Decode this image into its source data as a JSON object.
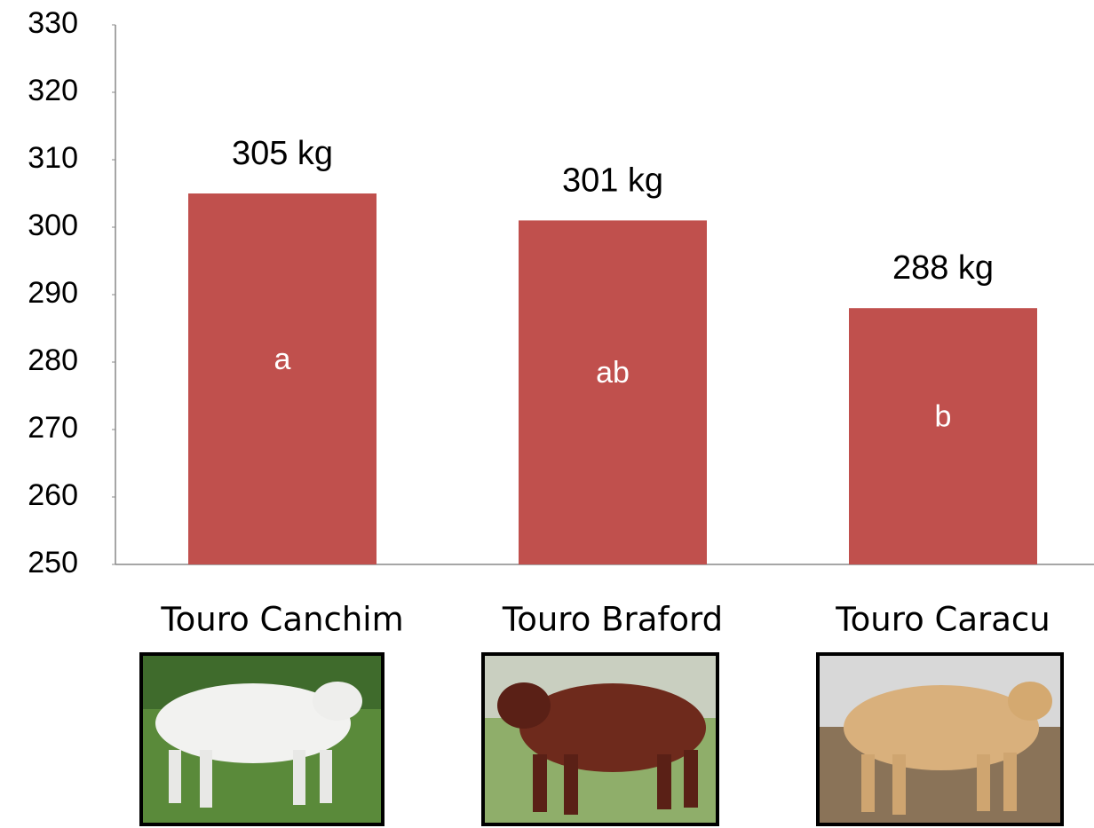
{
  "chart_data": {
    "type": "bar",
    "categories": [
      "Touro Canchim",
      "Touro Braford",
      "Touro Caracu"
    ],
    "values": [
      305,
      301,
      288
    ],
    "value_labels": [
      "305 kg",
      "301 kg",
      "288 kg"
    ],
    "group_letters": [
      "a",
      "ab",
      "b"
    ],
    "color": "#c0504d",
    "ylim": [
      250,
      330
    ],
    "yticks": [
      250,
      260,
      270,
      280,
      290,
      300,
      310,
      320,
      330
    ]
  }
}
